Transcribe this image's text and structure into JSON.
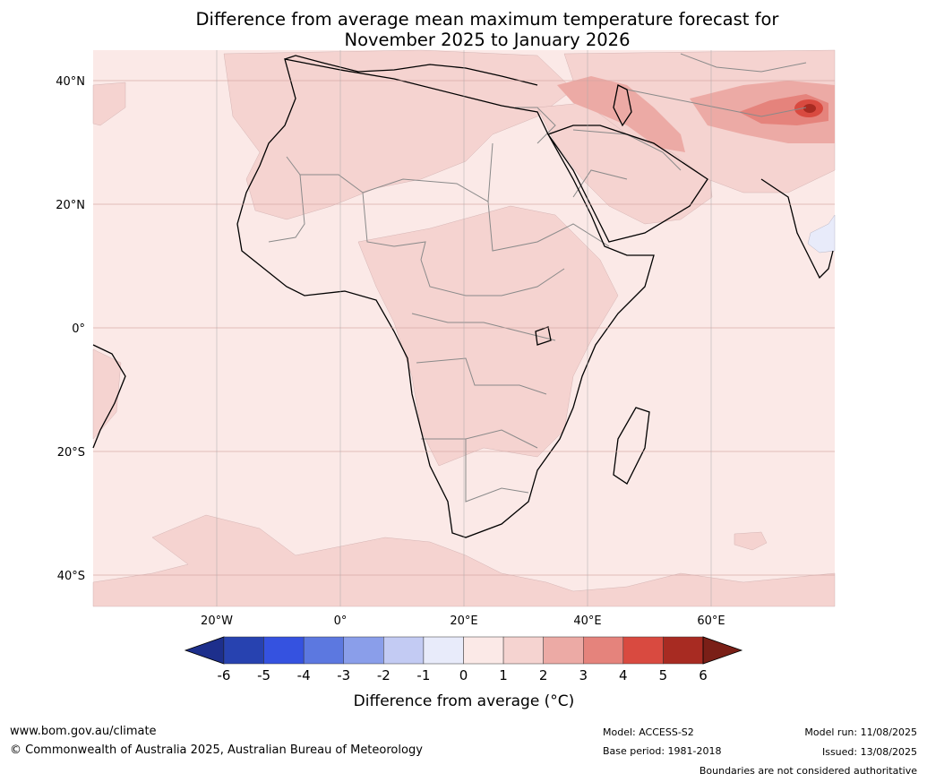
{
  "title": {
    "line1": "Difference from average mean maximum temperature forecast for",
    "line2": "November 2025 to January 2026"
  },
  "map": {
    "lat_labels": [
      "40°N",
      "20°N",
      "0°",
      "20°S",
      "40°S"
    ],
    "lat_values": [
      40,
      20,
      0,
      -20,
      -40
    ],
    "lon_labels": [
      "20°W",
      "0°",
      "20°E",
      "40°E",
      "60°E"
    ],
    "lon_values": [
      -20,
      0,
      20,
      40,
      60
    ],
    "lon_range": [
      -40,
      80
    ],
    "lat_range": [
      -45,
      45
    ],
    "background_color": "#fbe9e7"
  },
  "legend": {
    "ticks": [
      "-6",
      "-5",
      "-4",
      "-3",
      "-2",
      "-1",
      "0",
      "1",
      "2",
      "3",
      "4",
      "5",
      "6"
    ],
    "colors": [
      "#2742b0",
      "#3552e0",
      "#5c78e0",
      "#8a9eea",
      "#c3cbf3",
      "#e8ebfa",
      "#fbe9e7",
      "#f5d3d0",
      "#ecaaa5",
      "#e5837c",
      "#d94a40",
      "#a82b22"
    ],
    "under_color": "#1d2f8c",
    "over_color": "#7a1f17",
    "label": "Difference from average (°C)"
  },
  "footer": {
    "website": "www.bom.gov.au/climate",
    "copyright": "© Commonwealth of Australia 2025, Australian Bureau of Meteorology",
    "model": "Model: ACCESS-S2",
    "base_period": "Base period: 1981-2018",
    "model_run": "Model run: 11/08/2025",
    "issued": "Issued: 13/08/2025",
    "disclaimer": "Boundaries are not considered authoritative"
  }
}
